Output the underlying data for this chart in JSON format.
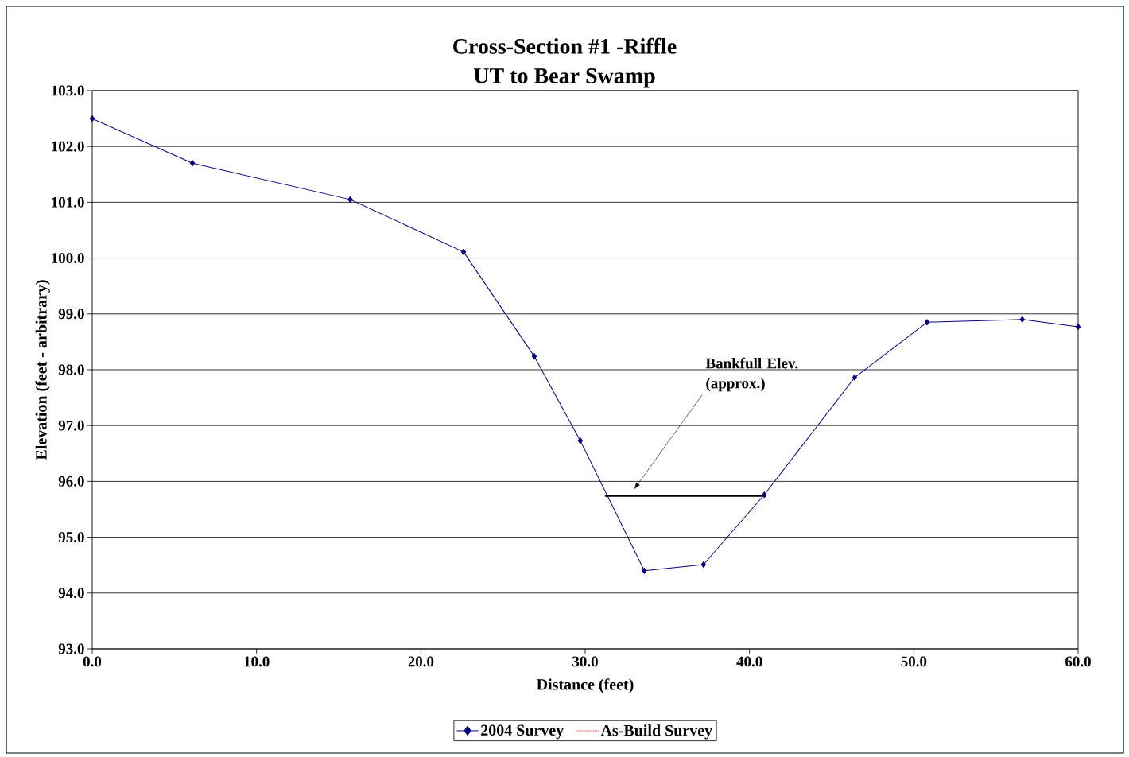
{
  "chart_data": {
    "type": "line",
    "title": "Cross-Section #1 -Riffle",
    "subtitle": "UT to Bear Swamp",
    "xlabel": "Distance (feet)",
    "ylabel": "Elevation (feet - arbitrary)",
    "series": [
      {
        "name": "2004 Survey",
        "color": "#000080",
        "x": [
          0.0,
          6.1,
          15.7,
          22.6,
          26.9,
          29.7,
          33.6,
          37.2,
          40.9,
          46.4,
          50.8,
          56.6,
          60.0
        ],
        "values": [
          102.5,
          101.7,
          101.05,
          100.11,
          98.24,
          96.73,
          94.4,
          94.51,
          95.76,
          97.86,
          98.85,
          98.9,
          98.77
        ]
      },
      {
        "name": "As-Build Survey",
        "color": "#ff0000",
        "line_style": "dotted",
        "marker": "none"
      },
      {
        "color": "#000000",
        "marker": "none",
        "x": [
          31.2,
          41.0
        ],
        "values": [
          95.74,
          95.74
        ]
      }
    ],
    "annotations": [
      "Bankfull Elev. (approx.)"
    ],
    "xlim": [
      0,
      60
    ],
    "ylim": [
      93,
      103
    ],
    "xticks": [
      {
        "value": 0,
        "label": "0.0"
      },
      {
        "value": 10,
        "label": "10.0"
      },
      {
        "value": 20,
        "label": "20.0"
      },
      {
        "value": 30,
        "label": "30.0"
      },
      {
        "value": 40,
        "label": "40.0"
      },
      {
        "value": 50,
        "label": "50.0"
      },
      {
        "value": 60,
        "label": "60.0"
      }
    ],
    "yticks": [
      {
        "value": 93,
        "label": "93.0"
      },
      {
        "value": 94,
        "label": "94.0"
      },
      {
        "value": 95,
        "label": "95.0"
      },
      {
        "value": 96,
        "label": "96.0"
      },
      {
        "value": 97,
        "label": "97.0"
      },
      {
        "value": 98,
        "label": "98.0"
      },
      {
        "value": 99,
        "label": "99.0"
      },
      {
        "value": 100,
        "label": "100.0"
      },
      {
        "value": 101,
        "label": "101.0"
      },
      {
        "value": 102,
        "label": "102.0"
      },
      {
        "value": 103,
        "label": "103.0"
      }
    ],
    "grid": "y",
    "legend": "bottom",
    "marker": "diamond",
    "line_style": "solid"
  }
}
